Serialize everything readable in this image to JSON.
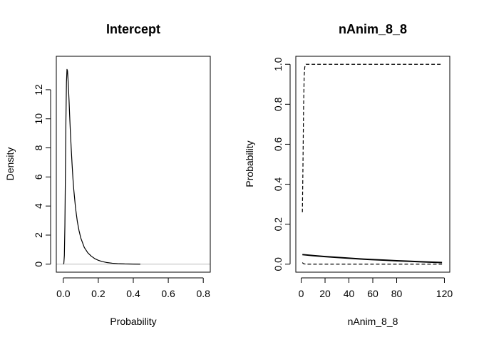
{
  "chart_data": [
    {
      "type": "line",
      "title": "Intercept",
      "xlabel": "Probability",
      "ylabel": "Density",
      "xlim": [
        -0.04,
        0.84
      ],
      "ylim": [
        -0.55,
        14.3
      ],
      "xticks": [
        0.0,
        0.2,
        0.4,
        0.6,
        0.8
      ],
      "xtick_labels": [
        "0.0",
        "0.2",
        "0.4",
        "0.6",
        "0.8"
      ],
      "yticks": [
        0,
        2,
        4,
        6,
        8,
        10,
        12
      ],
      "ytick_labels": [
        "0",
        "2",
        "4",
        "6",
        "8",
        "10",
        "12"
      ],
      "baseline": 0,
      "series": [
        {
          "style": "solid",
          "color": "#000000",
          "x": [
            0.001,
            0.003,
            0.006,
            0.009,
            0.012,
            0.015,
            0.018,
            0.021,
            0.024,
            0.027,
            0.03,
            0.033,
            0.036,
            0.04,
            0.045,
            0.05,
            0.055,
            0.06,
            0.07,
            0.08,
            0.09,
            0.1,
            0.12,
            0.14,
            0.16,
            0.18,
            0.2,
            0.22,
            0.25,
            0.28,
            0.31,
            0.35,
            0.4,
            0.44
          ],
          "y": [
            0.0,
            0.05,
            0.6,
            2.6,
            6.2,
            10.0,
            12.5,
            13.4,
            13.3,
            12.7,
            12.0,
            11.2,
            10.3,
            9.2,
            8.0,
            6.9,
            5.9,
            5.1,
            3.85,
            2.95,
            2.3,
            1.8,
            1.15,
            0.78,
            0.55,
            0.38,
            0.27,
            0.19,
            0.11,
            0.065,
            0.04,
            0.02,
            0.008,
            0.0
          ]
        }
      ]
    },
    {
      "type": "line",
      "title": "nAnim_8_8",
      "xlabel": "nAnim_8_8",
      "ylabel": "Probability",
      "xlim": [
        -4.5,
        124.5
      ],
      "ylim": [
        -0.04,
        1.04
      ],
      "xticks": [
        0,
        20,
        40,
        60,
        80,
        120
      ],
      "xtick_labels": [
        "0",
        "20",
        "40",
        "60",
        "80",
        "120"
      ],
      "yticks": [
        0.0,
        0.2,
        0.4,
        0.6,
        0.8,
        1.0
      ],
      "ytick_labels": [
        "0.0",
        "0.2",
        "0.4",
        "0.6",
        "0.8",
        "1.0"
      ],
      "series": [
        {
          "style": "solid",
          "color": "#000000",
          "x": [
            1,
            10,
            20,
            30,
            40,
            50,
            60,
            70,
            80,
            90,
            100,
            110,
            118
          ],
          "y": [
            0.048,
            0.043,
            0.038,
            0.034,
            0.03,
            0.026,
            0.023,
            0.02,
            0.017,
            0.015,
            0.012,
            0.01,
            0.008
          ]
        },
        {
          "style": "dashed",
          "color": "#000000",
          "x": [
            1,
            1.5,
            2,
            2.5,
            3,
            3.5,
            4,
            118
          ],
          "y": [
            0.26,
            0.5,
            0.78,
            0.94,
            0.985,
            0.997,
            1.0,
            1.0
          ]
        },
        {
          "style": "dashed",
          "color": "#000000",
          "x": [
            1,
            2,
            4,
            118
          ],
          "y": [
            0.008,
            0.002,
            0.0,
            0.0
          ]
        }
      ]
    }
  ]
}
